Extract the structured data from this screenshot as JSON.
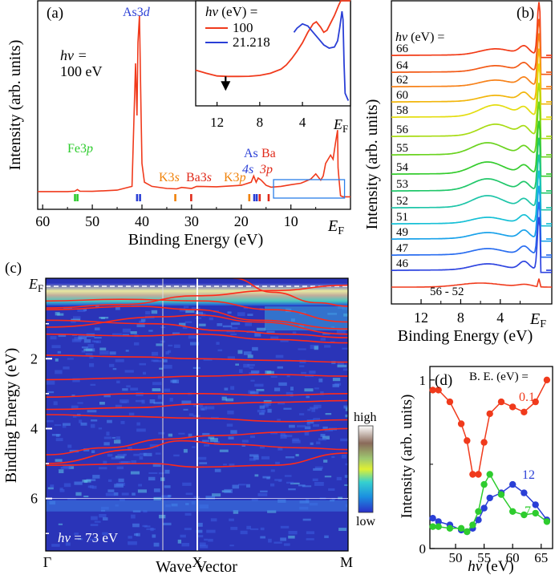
{
  "chart_data": [
    {
      "type": "line",
      "panel": "(a)",
      "xlabel": "Binding Energy (eV)",
      "ylabel": "Intensity (arb. units)",
      "xlim": [
        61,
        -2
      ],
      "ylim": [
        0,
        100
      ],
      "xticks": [
        60,
        50,
        40,
        30,
        20,
        10
      ],
      "ef_label": "E",
      "ef_sub": "F",
      "photon_label": "hν =",
      "photon_value": "100 eV",
      "series": [
        {
          "name": "100 eV",
          "color": "#f03a1c",
          "x": [
            61,
            55,
            53.5,
            53,
            52.5,
            50,
            45,
            42,
            41.3,
            41,
            40.8,
            40.5,
            40.2,
            40,
            39.5,
            38,
            35,
            33,
            32,
            30,
            29,
            25,
            20,
            18,
            17.5,
            17,
            16.6,
            16,
            15,
            14,
            12,
            10,
            8,
            6,
            5,
            4.5,
            4,
            3.5,
            3,
            2,
            1.5,
            1,
            0.6,
            0.5,
            0.3,
            0,
            -0.5,
            -2
          ],
          "y": [
            8.5,
            8.5,
            8.7,
            9.5,
            8.7,
            8.6,
            9.2,
            11,
            70,
            45,
            80,
            93,
            48,
            22,
            13,
            11,
            10,
            9.8,
            10.5,
            10,
            11,
            10.8,
            11.5,
            13,
            16,
            13,
            15,
            14,
            11.5,
            10.6,
            11,
            11.8,
            12.5,
            14.5,
            17,
            15.5,
            14,
            16,
            22,
            26,
            24,
            32,
            38,
            20,
            14,
            6.5,
            6,
            6
          ]
        }
      ],
      "core_levels": [
        {
          "label": "Fe3",
          "orb": "p",
          "color": "#2ecc2e",
          "ticks": [
            53.5,
            53.0
          ]
        },
        {
          "label": "As3",
          "orb": "d",
          "color": "#2a3fd6",
          "ticks": [
            41.0,
            40.4
          ]
        },
        {
          "label": "K3",
          "orb": "s",
          "color": "#f0820a",
          "ticks": [
            33.3
          ]
        },
        {
          "label": "Ba3",
          "orb": "s",
          "color": "#e02a1a",
          "ticks": [
            30.1
          ]
        },
        {
          "label": "K3",
          "orb": "p",
          "color": "#f0820a",
          "ticks": [
            18.4
          ]
        },
        {
          "label": "As",
          "orb": "4s",
          "color": "#2a3fd6",
          "ticks": [
            17.4,
            16.9
          ]
        },
        {
          "label": "Ba",
          "orb": "3p",
          "color": "#e02a1a",
          "ticks": [
            16.3,
            14.5
          ]
        }
      ],
      "zoom_box": {
        "x_range": [
          13.5,
          -0.8
        ]
      }
    },
    {
      "type": "line",
      "panel": "(a) inset",
      "xlim": [
        14,
        -0.5
      ],
      "xticks": [
        12,
        8,
        4
      ],
      "legend_title": "hν (eV) =",
      "series": [
        {
          "name": "100",
          "color": "#f03a1c",
          "x": [
            14,
            13,
            12,
            11,
            10,
            9,
            8,
            7,
            6,
            5.5,
            5,
            4.5,
            4,
            3.5,
            3,
            2.7,
            2.3,
            2,
            1.7,
            1.3,
            1,
            0.8,
            0.6,
            0.4,
            0.2,
            0,
            -0.3,
            -0.5
          ],
          "y": [
            34,
            31,
            28.5,
            28,
            28,
            28.2,
            29,
            31,
            35,
            39,
            45,
            52,
            60,
            70,
            78,
            80,
            75,
            70,
            72,
            80,
            86,
            91,
            96,
            100,
            100,
            100,
            100,
            100
          ]
        },
        {
          "name": "21.218",
          "color": "#2a3fd6",
          "x": [
            4.8,
            4.5,
            4,
            3.5,
            3,
            2.5,
            2,
            1.5,
            1,
            0.7,
            0.5,
            0.3,
            0.2,
            0.1,
            0,
            -0.3
          ],
          "y": [
            70,
            74,
            78,
            76,
            70,
            64,
            58,
            55,
            56,
            62,
            75,
            90,
            82,
            40,
            12,
            5
          ]
        }
      ],
      "arrow_at": 11.2
    },
    {
      "type": "line",
      "panel": "(b)",
      "xlabel": "Binding Energy (eV)",
      "ylabel": "Intensity (arb. units)",
      "xlim": [
        15,
        -1.2
      ],
      "xticks": [
        12,
        8,
        4
      ],
      "legend_title": "hν (eV) =",
      "photon_energies": [
        "66",
        "64",
        "62",
        "60",
        "58",
        "56",
        "55",
        "54",
        "53",
        "52",
        "51",
        "49",
        "47",
        "46"
      ],
      "colors": [
        "#f23b17",
        "#f35a16",
        "#f7821a",
        "#f2b60c",
        "#e4dd10",
        "#a8dc14",
        "#6ad31f",
        "#35cc2e",
        "#20c76a",
        "#1ec5a8",
        "#17c0d6",
        "#1aa2ea",
        "#2a6ef0",
        "#2f45e0"
      ],
      "difference_label": "56 - 52",
      "difference_color": "#f03a1c"
    },
    {
      "type": "heatmap",
      "panel": "(c)",
      "xlabel": "Wave Vector",
      "ylabel": "Binding Energy (eV)",
      "ylim": [
        -0.3,
        7.5
      ],
      "yticks": [
        2,
        4,
        6
      ],
      "k_points": [
        "Γ",
        "X",
        "M"
      ],
      "colorbar_high": "high",
      "colorbar_low": "low",
      "photon_label": "hν = 73 eV",
      "band_color": "#ff2a1a"
    },
    {
      "type": "line",
      "panel": "(d)",
      "xlabel": "hν (eV)",
      "ylabel": "Intensity (arb. units)",
      "xlim": [
        45.5,
        67
      ],
      "ylim": [
        0,
        1.08
      ],
      "xticks": [
        50,
        55,
        60,
        65
      ],
      "yticks": [
        0,
        1
      ],
      "legend_title": "B. E. (eV) =",
      "x": [
        46,
        47,
        49,
        51,
        52,
        53,
        54,
        55,
        56,
        58,
        60,
        62,
        64,
        66
      ],
      "series": [
        {
          "name": "0.1",
          "color": "#f03a1c",
          "values": [
            0.94,
            0.94,
            0.87,
            0.74,
            0.64,
            0.44,
            0.44,
            0.63,
            0.8,
            0.87,
            0.84,
            0.81,
            0.87,
            1.0
          ]
        },
        {
          "name": "12",
          "color": "#2a3fd6",
          "values": [
            0.18,
            0.16,
            0.14,
            0.11,
            0.1,
            0.12,
            0.17,
            0.24,
            0.3,
            0.33,
            0.38,
            0.33,
            0.26,
            0.17
          ]
        },
        {
          "name": "7",
          "color": "#2ecc2e",
          "values": [
            0.13,
            0.13,
            0.12,
            0.12,
            0.1,
            0.14,
            0.22,
            0.38,
            0.44,
            0.32,
            0.22,
            0.2,
            0.21,
            0.16
          ]
        }
      ]
    }
  ]
}
